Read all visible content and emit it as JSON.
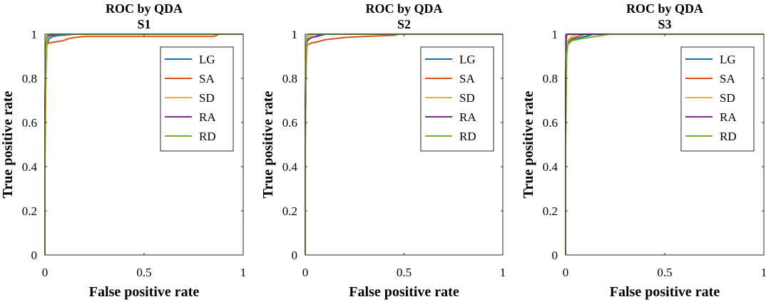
{
  "chart_data": [
    {
      "type": "line",
      "title": "ROC by QDA",
      "subtitle": "S1",
      "xlabel": "False positive rate",
      "ylabel": "True positive rate",
      "xlim": [
        0,
        1
      ],
      "ylim": [
        0,
        1
      ],
      "xticks": [
        0,
        0.5,
        1
      ],
      "xtick_labels": [
        "0",
        "0.5",
        "1"
      ],
      "yticks": [
        0,
        0.2,
        0.4,
        0.6,
        0.8,
        1
      ],
      "ytick_labels": [
        "0",
        "0.2",
        "0.4",
        "0.6",
        "0.8",
        "1"
      ],
      "legend_position": "top-right",
      "series": [
        {
          "name": "LG",
          "color": "#0072BD",
          "x": [
            0,
            0,
            0.005,
            0.01,
            0.02,
            0.04,
            0.08,
            0.15,
            1
          ],
          "y": [
            0,
            0.6,
            0.8,
            0.95,
            0.98,
            0.99,
            0.995,
            1,
            1
          ]
        },
        {
          "name": "SA",
          "color": "#D95319",
          "x": [
            0,
            0,
            0.005,
            0.01,
            0.02,
            0.05,
            0.09,
            0.12,
            0.15,
            0.2,
            0.3,
            0.6,
            0.85,
            0.88,
            1
          ],
          "y": [
            0,
            0.5,
            0.85,
            0.955,
            0.96,
            0.965,
            0.97,
            0.98,
            0.985,
            0.99,
            0.99,
            0.99,
            0.99,
            1,
            1
          ]
        },
        {
          "name": "SD",
          "color": "#EDB120",
          "x": [
            0,
            0,
            0.005,
            0.01,
            0.02,
            0.05,
            1
          ],
          "y": [
            0,
            0.4,
            0.8,
            0.97,
            0.99,
            1,
            1
          ]
        },
        {
          "name": "RA",
          "color": "#7E2F8E",
          "x": [
            0,
            0,
            0.005,
            0.01,
            0.03,
            0.06,
            1
          ],
          "y": [
            0,
            0.7,
            0.95,
            0.99,
            0.995,
            1,
            1
          ]
        },
        {
          "name": "RD",
          "color": "#77AC30",
          "x": [
            0,
            0,
            0.003,
            0.008,
            0.02,
            1
          ],
          "y": [
            0,
            0.5,
            0.9,
            0.99,
            1,
            1
          ]
        }
      ]
    },
    {
      "type": "line",
      "title": "ROC by QDA",
      "subtitle": "S2",
      "xlabel": "False positive rate",
      "ylabel": "True positive rate",
      "xlim": [
        0,
        1
      ],
      "ylim": [
        0,
        1
      ],
      "xticks": [
        0,
        0.5,
        1
      ],
      "xtick_labels": [
        "0",
        "0.5",
        "1"
      ],
      "yticks": [
        0,
        0.2,
        0.4,
        0.6,
        0.8,
        1
      ],
      "ytick_labels": [
        "0",
        "0.2",
        "0.4",
        "0.6",
        "0.8",
        "1"
      ],
      "legend_position": "top-right",
      "series": [
        {
          "name": "LG",
          "color": "#0072BD",
          "x": [
            0,
            0,
            0.005,
            0.01,
            0.03,
            0.06,
            0.1,
            1
          ],
          "y": [
            0,
            0.6,
            0.9,
            0.97,
            0.985,
            0.99,
            1,
            1
          ]
        },
        {
          "name": "SA",
          "color": "#D95319",
          "x": [
            0,
            0,
            0.005,
            0.01,
            0.03,
            0.06,
            0.1,
            0.15,
            0.2,
            0.3,
            0.45,
            0.47,
            1
          ],
          "y": [
            0,
            0.5,
            0.9,
            0.95,
            0.96,
            0.965,
            0.975,
            0.98,
            0.985,
            0.99,
            0.995,
            1,
            1
          ]
        },
        {
          "name": "SD",
          "color": "#EDB120",
          "x": [
            0,
            0,
            0.005,
            0.01,
            0.02,
            0.05,
            1
          ],
          "y": [
            0,
            0.5,
            0.85,
            0.97,
            0.99,
            1,
            1
          ]
        },
        {
          "name": "RA",
          "color": "#7E2F8E",
          "x": [
            0,
            0,
            0.005,
            0.01,
            0.02,
            0.05,
            0.09,
            1
          ],
          "y": [
            0,
            0.7,
            0.95,
            0.97,
            0.98,
            0.99,
            1,
            1
          ]
        },
        {
          "name": "RD",
          "color": "#77AC30",
          "x": [
            0,
            0,
            0.003,
            0.008,
            0.02,
            1
          ],
          "y": [
            0,
            0.5,
            0.9,
            0.99,
            1,
            1
          ]
        }
      ]
    },
    {
      "type": "line",
      "title": "ROC by QDA",
      "subtitle": "S3",
      "xlabel": "False positive rate",
      "ylabel": "True positive rate",
      "xlim": [
        0,
        1
      ],
      "ylim": [
        0,
        1
      ],
      "xticks": [
        0,
        0.5,
        1
      ],
      "xtick_labels": [
        "0",
        "0.5",
        "1"
      ],
      "yticks": [
        0,
        0.2,
        0.4,
        0.6,
        0.8,
        1
      ],
      "ytick_labels": [
        "0",
        "0.2",
        "0.4",
        "0.6",
        "0.8",
        "1"
      ],
      "legend_position": "top-right",
      "series": [
        {
          "name": "LG",
          "color": "#0072BD",
          "x": [
            0,
            0,
            0.005,
            0.01,
            0.02,
            0.05,
            0.1,
            0.14,
            1
          ],
          "y": [
            0,
            0.6,
            0.9,
            0.95,
            0.97,
            0.98,
            0.99,
            1,
            1
          ]
        },
        {
          "name": "SA",
          "color": "#D95319",
          "x": [
            0,
            0,
            0.005,
            0.01,
            0.03,
            0.06,
            0.1,
            1
          ],
          "y": [
            0,
            0.6,
            0.93,
            0.97,
            0.98,
            0.99,
            1,
            1
          ]
        },
        {
          "name": "SD",
          "color": "#EDB120",
          "x": [
            0,
            0,
            0.005,
            0.01,
            0.03,
            0.06,
            1
          ],
          "y": [
            0,
            0.5,
            0.9,
            0.97,
            0.99,
            1,
            1
          ]
        },
        {
          "name": "RA",
          "color": "#7E2F8E",
          "x": [
            0,
            0,
            0.003,
            0.008,
            0.02,
            1
          ],
          "y": [
            0,
            0.8,
            0.98,
            1,
            1,
            1
          ]
        },
        {
          "name": "RD",
          "color": "#77AC30",
          "x": [
            0,
            0,
            0.005,
            0.01,
            0.03,
            0.08,
            0.15,
            0.22,
            1
          ],
          "y": [
            0,
            0.5,
            0.9,
            0.95,
            0.97,
            0.98,
            0.99,
            1,
            1
          ]
        }
      ]
    }
  ]
}
